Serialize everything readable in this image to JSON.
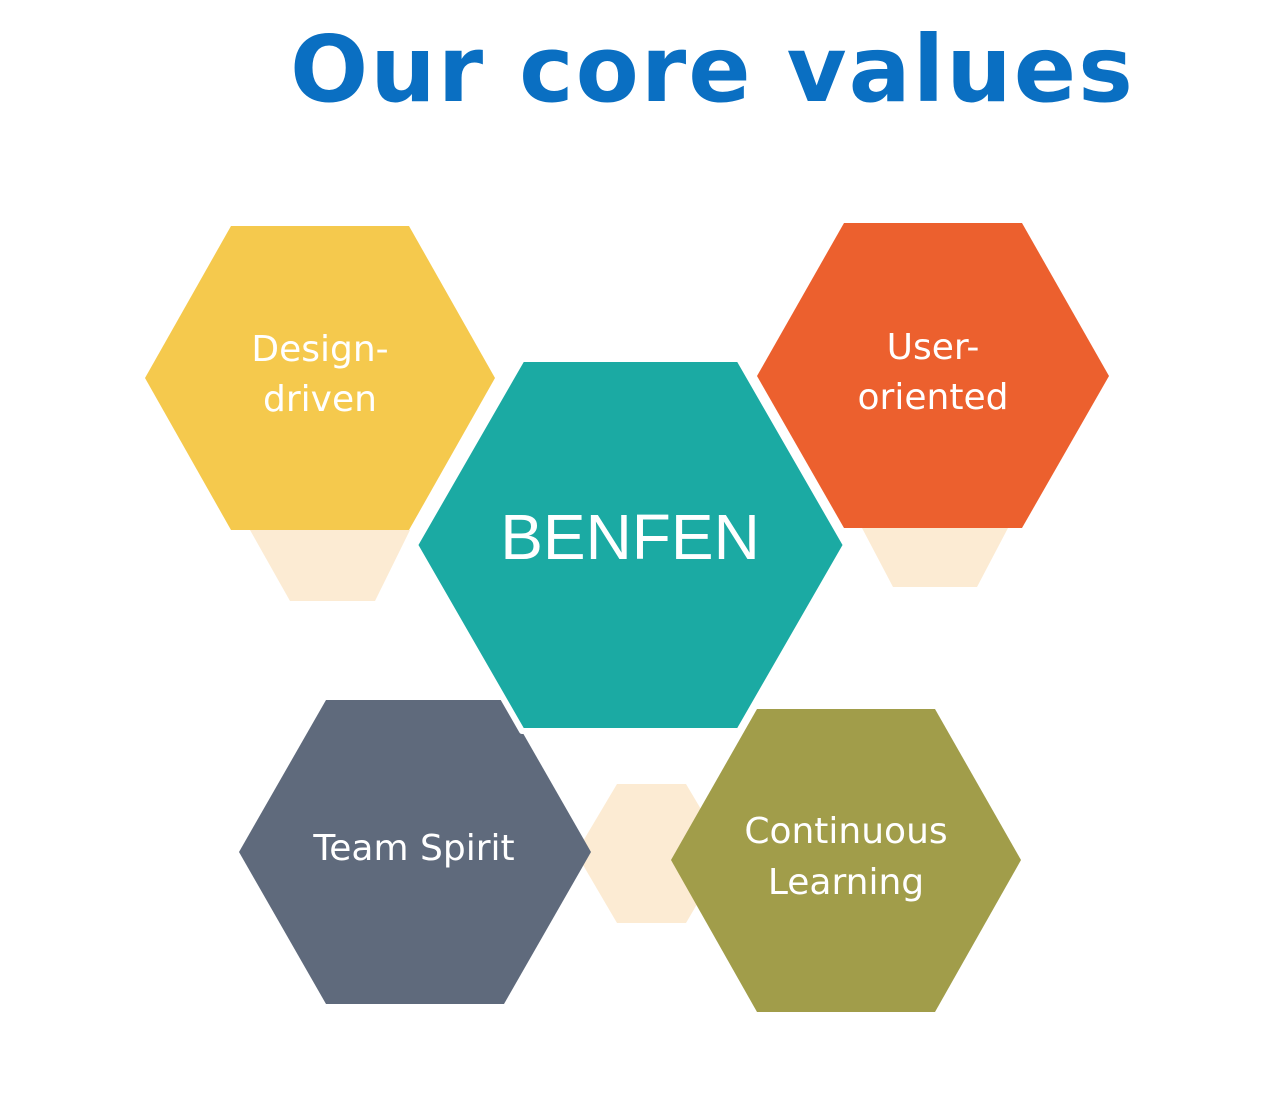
{
  "title": "Our core values",
  "colors": {
    "title": "#0a6fc2",
    "center": "#1baaa3",
    "design": "#f5c94d",
    "user": "#ec602e",
    "team": "#5f6a7c",
    "learning": "#a19d4a",
    "accent": "#fcebd3"
  },
  "hexagons": {
    "center": {
      "line1": "BENFEN"
    },
    "design": {
      "line1": "Design-",
      "line2": "driven"
    },
    "user": {
      "line1": "User-",
      "line2": "oriented"
    },
    "team": {
      "line1": "Team Spirit"
    },
    "learning": {
      "line1": "Continuous",
      "line2": "Learning"
    }
  }
}
